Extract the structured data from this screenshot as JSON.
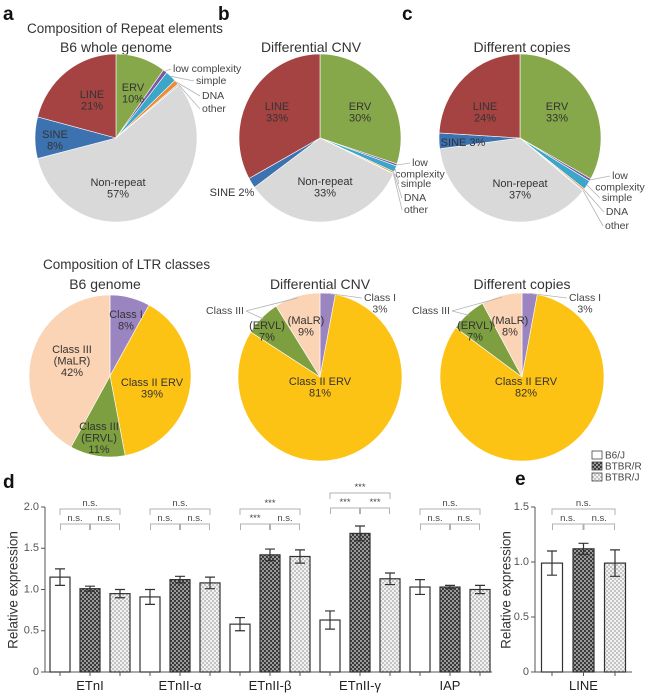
{
  "panels": {
    "a": "a",
    "b": "b",
    "c": "c",
    "d": "d",
    "e": "e"
  },
  "headings": {
    "repeat": "Composition of Repeat elements",
    "ltr": "Composition of LTR classes"
  },
  "colors": {
    "LINE": "#a54343",
    "ERV": "#86a84a",
    "SINE": "#3d72b0",
    "low complexity": "#7a55a5",
    "simple": "#3ba6c8",
    "DNA": "#ef8a32",
    "other": "#a9c6e2",
    "Non-repeat": "#d9d9d9",
    "Class I": "#9b85c0",
    "Class II ERV": "#fdc314",
    "Class III (ERVL)": "#7d9f3f",
    "Class III (MaLR)": "#fbd4b5"
  },
  "legend": [
    {
      "label": "B6/J",
      "fill": "white"
    },
    {
      "label": "BTBR/R",
      "fill": "dark-checker"
    },
    {
      "label": "BTBR/J",
      "fill": "light-checker"
    }
  ],
  "chart_data": [
    {
      "type": "pie",
      "title": "B6 whole genome",
      "slices": [
        {
          "name": "ERV",
          "value": 10,
          "lines": [
            "ERV",
            "10%"
          ]
        },
        {
          "name": "low complexity",
          "value": 0.8,
          "lines": [
            "low complexity"
          ]
        },
        {
          "name": "simple",
          "value": 2.2,
          "lines": [
            "simple"
          ]
        },
        {
          "name": "DNA",
          "value": 0.9,
          "lines": [
            "DNA"
          ]
        },
        {
          "name": "other",
          "value": 0.3,
          "lines": [
            "other"
          ]
        },
        {
          "name": "Non-repeat",
          "value": 57,
          "lines": [
            "Non-repeat",
            "57%"
          ]
        },
        {
          "name": "SINE",
          "value": 8,
          "lines": [
            "SINE",
            "8%"
          ]
        },
        {
          "name": "LINE",
          "value": 21,
          "lines": [
            "LINE",
            "21%"
          ]
        }
      ]
    },
    {
      "type": "pie",
      "title": "Differential  CNV",
      "slices": [
        {
          "name": "ERV",
          "value": 30,
          "lines": [
            "ERV",
            "30%"
          ]
        },
        {
          "name": "low complexity",
          "value": 0.4,
          "lines": [
            "low",
            "complexity"
          ]
        },
        {
          "name": "simple",
          "value": 1.2,
          "lines": [
            "simple"
          ]
        },
        {
          "name": "DNA",
          "value": 0.3,
          "lines": [
            "DNA"
          ]
        },
        {
          "name": "other",
          "value": 0.1,
          "lines": [
            "other"
          ]
        },
        {
          "name": "Non-repeat",
          "value": 33,
          "lines": [
            "Non-repeat",
            "33%"
          ]
        },
        {
          "name": "SINE",
          "value": 2,
          "lines": [
            "SINE 2%"
          ]
        },
        {
          "name": "LINE",
          "value": 33,
          "lines": [
            "LINE",
            "33%"
          ]
        }
      ]
    },
    {
      "type": "pie",
      "title": "Different copies",
      "slices": [
        {
          "name": "ERV",
          "value": 33,
          "lines": [
            "ERV",
            "33%"
          ]
        },
        {
          "name": "low complexity",
          "value": 0.5,
          "lines": [
            "low",
            "complexity"
          ]
        },
        {
          "name": "simple",
          "value": 1.8,
          "lines": [
            "simple"
          ]
        },
        {
          "name": "DNA",
          "value": 0.3,
          "lines": [
            "DNA"
          ]
        },
        {
          "name": "other",
          "value": 0.2,
          "lines": [
            "other"
          ]
        },
        {
          "name": "Non-repeat",
          "value": 37,
          "lines": [
            "Non-repeat",
            "37%"
          ]
        },
        {
          "name": "SINE",
          "value": 3,
          "lines": [
            "SINE 3%"
          ]
        },
        {
          "name": "LINE",
          "value": 24,
          "lines": [
            "LINE",
            "24%"
          ]
        }
      ]
    },
    {
      "type": "pie",
      "title": "B6 genome",
      "slices": [
        {
          "name": "Class I",
          "value": 8,
          "lines": [
            "Class I",
            "8%"
          ]
        },
        {
          "name": "Class II ERV",
          "value": 39,
          "lines": [
            "Class II ERV",
            "39%"
          ]
        },
        {
          "name": "Class III (ERVL)",
          "value": 11,
          "lines": [
            "Class III",
            "(ERVL)",
            "11%"
          ]
        },
        {
          "name": "Class III (MaLR)",
          "value": 42,
          "lines": [
            "Class III",
            "(MaLR)",
            "42%"
          ]
        }
      ]
    },
    {
      "type": "pie",
      "title": "Differential  CNV",
      "shared_label": "Class III",
      "slices": [
        {
          "name": "Class I",
          "value": 3,
          "lines": [
            "Class I",
            "3%"
          ]
        },
        {
          "name": "Class II ERV",
          "value": 81,
          "lines": [
            "Class II ERV",
            "81%"
          ]
        },
        {
          "name": "Class III (ERVL)",
          "value": 7,
          "lines": [
            "(ERVL)",
            "7%"
          ]
        },
        {
          "name": "Class III (MaLR)",
          "value": 9,
          "lines": [
            "(MaLR)",
            "9%"
          ]
        }
      ]
    },
    {
      "type": "pie",
      "title": "Different copies",
      "shared_label": "Class III",
      "slices": [
        {
          "name": "Class I",
          "value": 3,
          "lines": [
            "Class I",
            "3%"
          ]
        },
        {
          "name": "Class II ERV",
          "value": 82,
          "lines": [
            "Class II ERV",
            "82%"
          ]
        },
        {
          "name": "Class III (ERVL)",
          "value": 7,
          "lines": [
            "(ERVL)",
            "7%"
          ]
        },
        {
          "name": "Class III (MaLR)",
          "value": 8,
          "lines": [
            "(MaLR)",
            "8%"
          ]
        }
      ]
    },
    {
      "type": "bar",
      "ylabel": "Relative expression",
      "ylim": [
        0,
        2.0
      ],
      "yticks": [
        0,
        0.5,
        1.0,
        1.5,
        2.0
      ],
      "yticklabels": [
        "0",
        "0.5",
        "1.0",
        "1.5",
        "2.0"
      ],
      "series": [
        "B6/J",
        "BTBR/R",
        "BTBR/J"
      ],
      "groups": [
        {
          "label": "ETnI",
          "values": [
            1.15,
            1.01,
            0.95
          ],
          "errors": [
            0.1,
            0.03,
            0.05
          ],
          "sig": {
            "overall": "n.s.",
            "left": "n.s.",
            "right": "n.s."
          }
        },
        {
          "label": "ETnII-α",
          "values": [
            0.91,
            1.12,
            1.08
          ],
          "errors": [
            0.09,
            0.04,
            0.07
          ],
          "sig": {
            "overall": "n.s.",
            "left": "n.s.",
            "right": "n.s."
          }
        },
        {
          "label": "ETnII-β",
          "values": [
            0.58,
            1.42,
            1.4
          ],
          "errors": [
            0.08,
            0.07,
            0.08
          ],
          "sig": {
            "overall": "***",
            "left": "***",
            "right": "n.s."
          }
        },
        {
          "label": "ETnII-γ",
          "values": [
            0.63,
            1.68,
            1.13
          ],
          "errors": [
            0.11,
            0.09,
            0.07
          ],
          "sig": {
            "overall": "***",
            "left": "***",
            "right": "***"
          }
        },
        {
          "label": "IAP",
          "values": [
            1.03,
            1.03,
            1.0
          ],
          "errors": [
            0.09,
            0.02,
            0.05
          ],
          "sig": {
            "overall": "n.s.",
            "left": "n.s.",
            "right": "n.s."
          }
        }
      ]
    },
    {
      "type": "bar",
      "ylabel": "Relative expression",
      "ylim": [
        0,
        1.5
      ],
      "yticks": [
        0,
        0.5,
        1.0,
        1.5
      ],
      "yticklabels": [
        "0",
        "0.5",
        "1.0",
        "1.5"
      ],
      "series": [
        "B6/J",
        "BTBR/R",
        "BTBR/J"
      ],
      "groups": [
        {
          "label": "LINE",
          "values": [
            0.99,
            1.12,
            0.99
          ],
          "errors": [
            0.11,
            0.05,
            0.12
          ],
          "sig": {
            "overall": "n.s.",
            "left": "n.s.",
            "right": "n.s."
          }
        }
      ]
    }
  ]
}
